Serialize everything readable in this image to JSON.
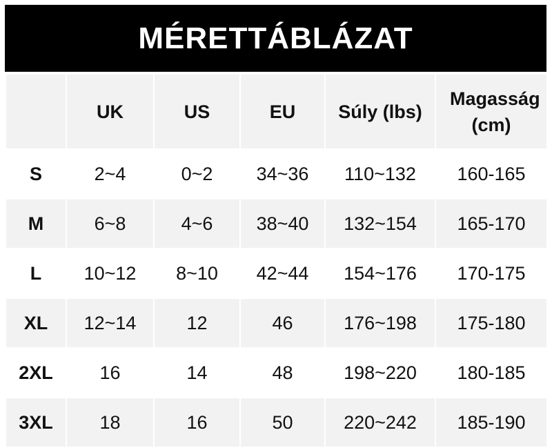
{
  "title": "MÉRETTÁBLÁZAT",
  "headers": [
    "",
    "UK",
    "US",
    "EU",
    "Súly (lbs)",
    "Magasság (cm)"
  ],
  "rows": [
    [
      "S",
      "2~4",
      "0~2",
      "34~36",
      "110~132",
      "160-165"
    ],
    [
      "M",
      "6~8",
      "4~6",
      "38~40",
      "132~154",
      "165-170"
    ],
    [
      "L",
      "10~12",
      "8~10",
      "42~44",
      "154~176",
      "170-175"
    ],
    [
      "XL",
      "12~14",
      "12",
      "46",
      "176~198",
      "175-180"
    ],
    [
      "2XL",
      "16",
      "14",
      "48",
      "198~220",
      "180-185"
    ],
    [
      "3XL",
      "18",
      "16",
      "50",
      "220~242",
      "185-190"
    ]
  ],
  "colors": {
    "title_bg": "#000000",
    "header_bg": "#f2f2f2",
    "stripe_bg": "#f2f2f2"
  }
}
